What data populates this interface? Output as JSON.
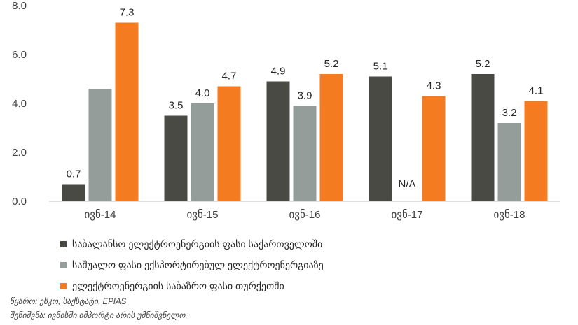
{
  "chart_data": {
    "type": "bar",
    "categories": [
      "ივნ-14",
      "ივნ-15",
      "ივნ-16",
      "ივნ-17",
      "ივნ-18"
    ],
    "series": [
      {
        "name": "საბალანსო ელექტროენერგიის ფასი საქართველოში",
        "color": "#4a4a44",
        "values": [
          0.7,
          3.5,
          4.9,
          5.1,
          5.2
        ],
        "labels": [
          "0.7",
          "3.5",
          "4.9",
          "5.1",
          "5.2"
        ]
      },
      {
        "name": "საშუალო ფასი ექსპორტირებულ ელექტროენერგიაზე",
        "color": "#959d9b",
        "values": [
          4.6,
          4.0,
          3.9,
          null,
          3.2
        ],
        "labels": [
          "",
          "4.0",
          "3.9",
          "N/A",
          "3.2"
        ]
      },
      {
        "name": "ელექტროენერგიის საბაზრო ფასი თურქეთში",
        "color": "#f47b20",
        "values": [
          7.3,
          4.7,
          5.2,
          4.3,
          4.1
        ],
        "labels": [
          "7.3",
          "4.7",
          "5.2",
          "4.3",
          "4.1"
        ]
      }
    ],
    "yticks": [
      "0.0",
      "2.0",
      "4.0",
      "6.0",
      "8.0"
    ],
    "ylim": [
      0,
      8
    ],
    "grid": false,
    "legend_position": "bottom"
  },
  "notes": {
    "source": "წყარო: ესკო, საქსტატი, EPIAS",
    "note": "შენიშვნა: ივნისში იმპორტი არის უმნიშვნელო."
  }
}
